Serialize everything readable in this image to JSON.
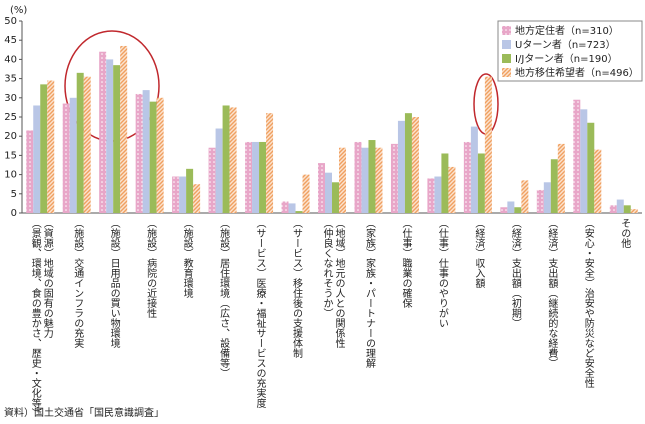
{
  "chart_data": {
    "type": "bar",
    "y_unit": "(%)",
    "categories": [
      [
        "（資源）地域の固有の魅力",
        "（景観、環境、食の豊かさ、歴史・文化等）"
      ],
      [
        "（施設）交通インフラの充実"
      ],
      [
        "（施設）日用品の買い物環境"
      ],
      [
        "（施設）病院の近接性"
      ],
      [
        "（施設）教育環境"
      ],
      [
        "（施設）居住環境（広さ、設備等）"
      ],
      [
        "（サービス）医療・福祉サービスの充実度"
      ],
      [
        "（サービス）移住後の支援体制"
      ],
      [
        "（地域）地元の人との関係性",
        "（仲良くなれそうか）"
      ],
      [
        "（家族）家族・パートナーの理解"
      ],
      [
        "（仕事）職業の確保"
      ],
      [
        "（仕事）仕事のやりがい"
      ],
      [
        "（経済）収入額"
      ],
      [
        "（経済）支出額（初期）"
      ],
      [
        "（経済）支出額（継続的な経費）"
      ],
      [
        "（安心・安全）治安や防災など安全性"
      ],
      [
        "その他"
      ]
    ],
    "series": [
      {
        "name": "地方定住者（n=310）",
        "color": "#e8a6c8",
        "values": [
          21.5,
          28.5,
          42,
          31,
          9.5,
          17,
          18.5,
          3,
          13,
          18.5,
          18,
          9,
          18.5,
          1.5,
          6,
          29.5,
          2
        ]
      },
      {
        "name": "Uターン者（n=723）",
        "color": "#b9c6e6",
        "values": [
          28,
          30,
          40,
          32,
          9.5,
          22,
          18.5,
          2.5,
          10.5,
          17,
          24,
          9.5,
          22.5,
          3,
          8,
          27,
          3.5
        ]
      },
      {
        "name": "I/Jターン者（n=190）",
        "color": "#9bbb59",
        "values": [
          33.5,
          36.5,
          38.5,
          29,
          11.5,
          28,
          18.5,
          0.5,
          8,
          19,
          26,
          15.5,
          15.5,
          1.5,
          14,
          23.5,
          2
        ]
      },
      {
        "name": "地方移住希望者（n=496）",
        "color": "#f0a060",
        "values": [
          34.5,
          35.5,
          43.5,
          30,
          7.5,
          27.5,
          26,
          10,
          17,
          17,
          25,
          12,
          35.5,
          8.5,
          18,
          16.5,
          1
        ]
      }
    ],
    "ylim": [
      0,
      50
    ],
    "yticks": [
      0,
      5,
      10,
      15,
      20,
      25,
      30,
      35,
      40,
      45,
      50
    ],
    "legend": "top-right",
    "source": "資料）国土交通省「国民意識調査」"
  }
}
